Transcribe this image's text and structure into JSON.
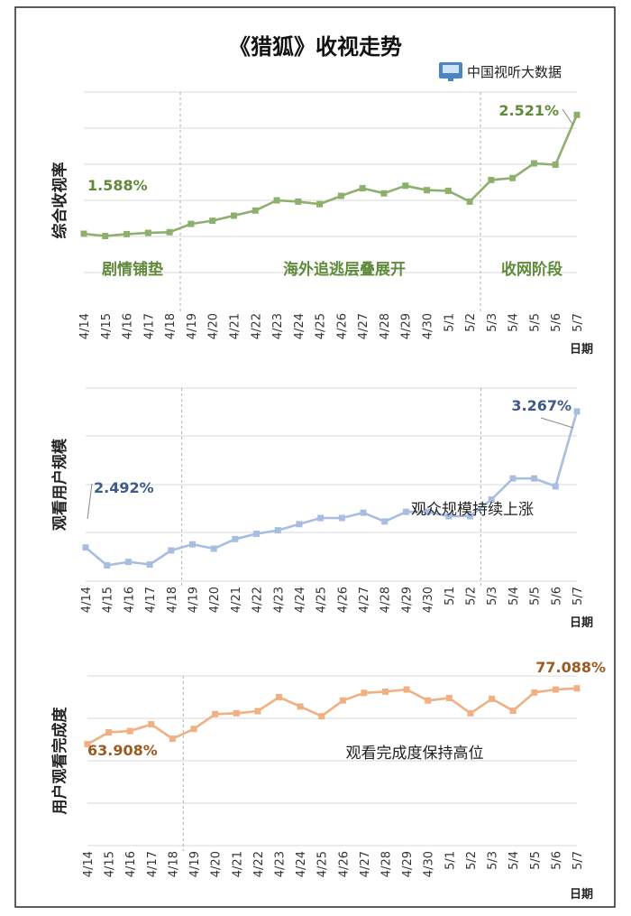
{
  "title": "《猎狐》收视走势",
  "source": "中国视听大数据",
  "dates": [
    "4/14",
    "4/15",
    "4/16",
    "4/17",
    "4/18",
    "4/19",
    "4/20",
    "4/21",
    "4/22",
    "4/23",
    "4/24",
    "4/25",
    "4/26",
    "4/27",
    "4/28",
    "4/29",
    "4/30",
    "5/1",
    "5/2",
    "5/3",
    "5/4",
    "5/5",
    "5/6",
    "5/7"
  ],
  "date_axis_label": "日期",
  "colors": {
    "frame": "#333333",
    "grid": "#d9d9d9",
    "divider": "#b0b0b0"
  },
  "chart_data": [
    {
      "type": "line",
      "ylabel": "综合收视率",
      "xlabel": "日期",
      "ylim": [
        1.0,
        2.7
      ],
      "color": "#8db06d",
      "label_color": "#5e8a3a",
      "values": [
        1.588,
        1.57,
        1.585,
        1.595,
        1.6,
        1.665,
        1.69,
        1.73,
        1.77,
        1.85,
        1.84,
        1.82,
        1.885,
        1.945,
        1.905,
        1.965,
        1.93,
        1.925,
        1.84,
        2.01,
        2.025,
        2.14,
        2.13,
        2.521
      ],
      "start_label": "1.588%",
      "end_label": "2.521%",
      "dividers_after": [
        "4/18",
        "5/2"
      ],
      "phase_labels": [
        "剧情铺垫",
        "海外追逃层叠展开",
        "收网阶段"
      ]
    },
    {
      "type": "line",
      "ylabel": "观看用户规模",
      "xlabel": "日期",
      "ylim": [
        2.3,
        3.4
      ],
      "color": "#a8bde0",
      "label_color": "#3d5a8a",
      "values": [
        2.492,
        2.39,
        2.41,
        2.395,
        2.475,
        2.51,
        2.485,
        2.54,
        2.57,
        2.59,
        2.625,
        2.66,
        2.66,
        2.69,
        2.64,
        2.695,
        2.695,
        2.67,
        2.67,
        2.765,
        2.885,
        2.885,
        2.84,
        3.267
      ],
      "start_label": "2.492%",
      "end_label": "3.267%",
      "dividers_after": [
        "4/18",
        "5/2"
      ],
      "annotation": "观众规模持续上涨"
    },
    {
      "type": "line",
      "ylabel": "用户观看完成度",
      "xlabel": "日期",
      "ylim": [
        40,
        80
      ],
      "color": "#f0b083",
      "label_color": "#9a5a22",
      "values": [
        63.908,
        66.7,
        67.0,
        68.6,
        65.2,
        67.5,
        71.0,
        71.2,
        71.7,
        75.0,
        72.8,
        70.5,
        74.2,
        76.0,
        76.3,
        76.8,
        74.2,
        74.8,
        71.2,
        74.6,
        71.8,
        76.1,
        76.8,
        77.088
      ],
      "start_label": "63.908%",
      "end_label": "77.088%",
      "dividers_after": [
        "4/18"
      ],
      "annotation": "观看完成度保持高位"
    }
  ]
}
